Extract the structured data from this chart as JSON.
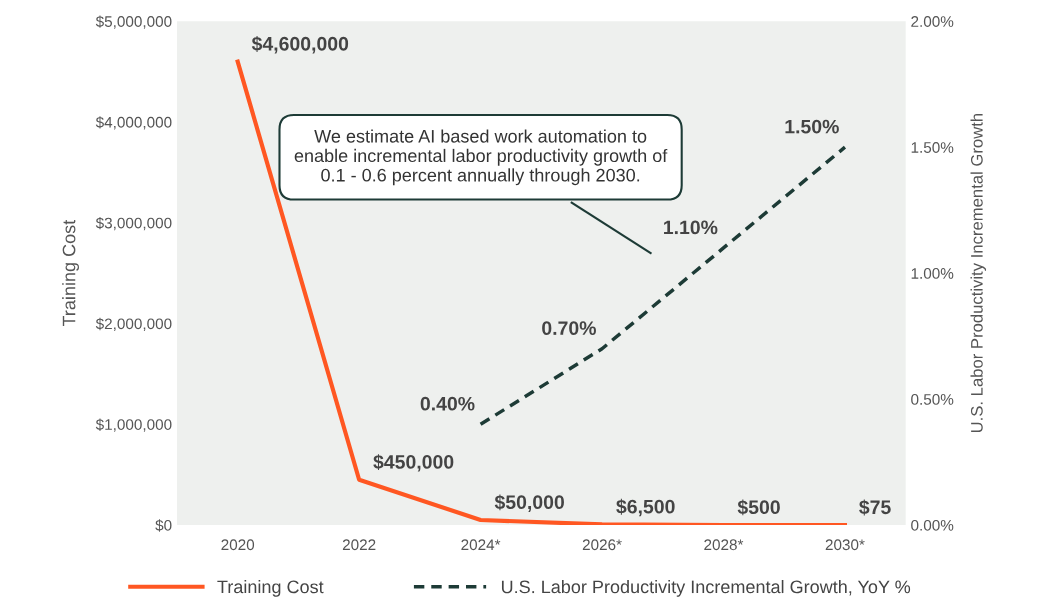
{
  "chart_data": {
    "type": "line",
    "ylabel": "Training Cost",
    "y2label": "U.S. Labor Productivity Incremental Growth",
    "categories": [
      "2020",
      "2022",
      "2024*",
      "2026*",
      "2028*",
      "2030*"
    ],
    "series": [
      {
        "name": "Training Cost",
        "color": "#ff5722",
        "values": [
          4600000,
          450000,
          50000,
          6500,
          500,
          75
        ],
        "value_labels": [
          "$4,600,000",
          "$450,000",
          "$50,000",
          "$6,500",
          "$500",
          "$75"
        ],
        "line_style": "solid"
      },
      {
        "name": "U.S. Labor Productivity Incremental Growth, YoY %",
        "color": "#1d3b36",
        "axis": "y2",
        "values": [
          null,
          null,
          0.4,
          0.7,
          1.1,
          1.5
        ],
        "value_labels": [
          null,
          null,
          "0.40%",
          "0.70%",
          "1.10%",
          "1.50%"
        ],
        "line_style": "dashed"
      }
    ],
    "ylim": [
      0,
      5000000
    ],
    "yticks": [
      {
        "value": 0,
        "label": "$0"
      },
      {
        "value": 1000000,
        "label": "$1,000,000"
      },
      {
        "value": 2000000,
        "label": "$2,000,000"
      },
      {
        "value": 3000000,
        "label": "$3,000,000"
      },
      {
        "value": 4000000,
        "label": "$4,000,000"
      },
      {
        "value": 5000000,
        "label": "$5,000,000"
      }
    ],
    "y2lim": [
      0,
      2
    ],
    "y2ticks": [
      {
        "value": 0,
        "label": "0.00%"
      },
      {
        "value": 0.5,
        "label": "0.50%"
      },
      {
        "value": 1,
        "label": "1.00%"
      },
      {
        "value": 1.5,
        "label": "1.50%"
      },
      {
        "value": 2,
        "label": "2.00%"
      }
    ],
    "annotations": [
      "We estimate AI based work automation to enable incremental labor productivity growth of 0.1 - 0.6 percent annually through 2030."
    ],
    "grid": false,
    "legend": "bottom",
    "marker": "none"
  }
}
